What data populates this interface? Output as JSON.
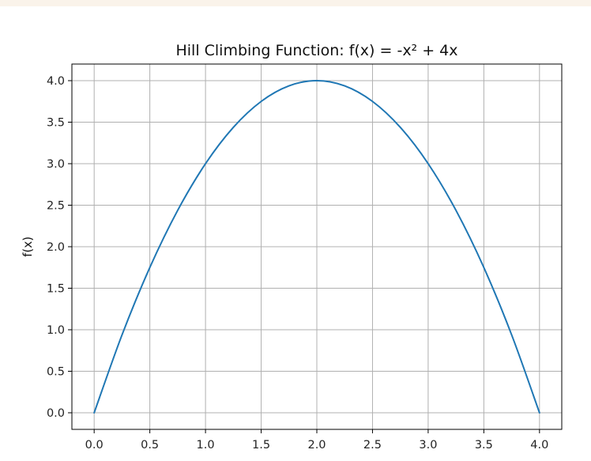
{
  "page": {
    "background": "#ffffff",
    "top_strip_color": "#faf3ea"
  },
  "chart_data": {
    "type": "line",
    "title": "Hill Climbing Function: f(x) = -x² + 4x",
    "xlabel": "",
    "ylabel": "f(x)",
    "xlim": [
      -0.2,
      4.2
    ],
    "ylim": [
      -0.2,
      4.2
    ],
    "xticks": [
      0.0,
      0.5,
      1.0,
      1.5,
      2.0,
      2.5,
      3.0,
      3.5,
      4.0
    ],
    "xtick_labels": [
      "0.0",
      "0.5",
      "1.0",
      "1.5",
      "2.0",
      "2.5",
      "3.0",
      "3.5",
      "4.0"
    ],
    "yticks": [
      0.0,
      0.5,
      1.0,
      1.5,
      2.0,
      2.5,
      3.0,
      3.5,
      4.0
    ],
    "ytick_labels": [
      "0.0",
      "0.5",
      "1.0",
      "1.5",
      "2.0",
      "2.5",
      "3.0",
      "3.5",
      "4.0"
    ],
    "grid": true,
    "grid_color": "#b0b0b0",
    "series": [
      {
        "color": "#1f77b4",
        "x": [
          0.0,
          0.25,
          0.5,
          0.75,
          1.0,
          1.25,
          1.5,
          1.75,
          2.0,
          2.25,
          2.5,
          2.75,
          3.0,
          3.25,
          3.5,
          3.75,
          4.0
        ],
        "y": [
          0.0,
          0.9375,
          1.75,
          2.4375,
          3.0,
          3.4375,
          3.75,
          3.9375,
          4.0,
          3.9375,
          3.75,
          3.4375,
          3.0,
          2.4375,
          1.75,
          0.9375,
          0.0
        ]
      }
    ]
  }
}
